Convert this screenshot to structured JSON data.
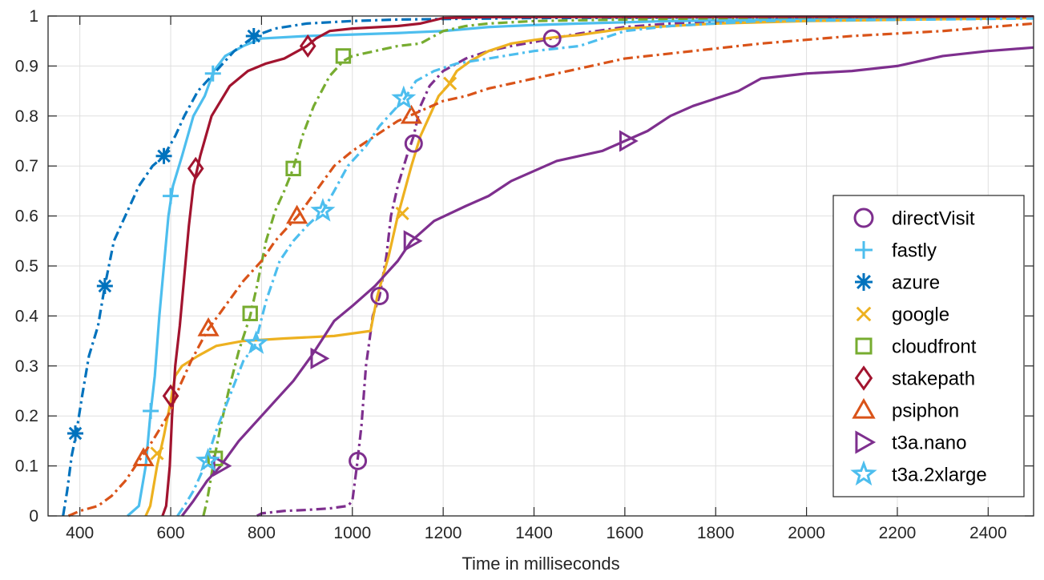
{
  "chart_data": {
    "type": "line",
    "title": "",
    "xlabel": "Time in milliseconds",
    "ylabel": "",
    "xlim": [
      330,
      2500
    ],
    "ylim": [
      0,
      1
    ],
    "xticks": [
      400,
      600,
      800,
      1000,
      1200,
      1400,
      1600,
      1800,
      2000,
      2200,
      2400
    ],
    "yticks": [
      0,
      0.1,
      0.2,
      0.3,
      0.4,
      0.5,
      0.6,
      0.7,
      0.8,
      0.9,
      1
    ],
    "grid": true,
    "legend_position": "right",
    "series": [
      {
        "name": "directVisit",
        "color": "#7E2F8E",
        "dash": "dashdot",
        "marker": "circle",
        "points": [
          [
            790,
            0
          ],
          [
            800,
            0.005
          ],
          [
            850,
            0.01
          ],
          [
            900,
            0.012
          ],
          [
            950,
            0.015
          ],
          [
            990,
            0.02
          ],
          [
            1000,
            0.03
          ],
          [
            1010,
            0.1
          ],
          [
            1020,
            0.18
          ],
          [
            1030,
            0.3
          ],
          [
            1045,
            0.4
          ],
          [
            1060,
            0.44
          ],
          [
            1075,
            0.52
          ],
          [
            1085,
            0.6
          ],
          [
            1100,
            0.66
          ],
          [
            1120,
            0.72
          ],
          [
            1135,
            0.76
          ],
          [
            1150,
            0.82
          ],
          [
            1170,
            0.86
          ],
          [
            1200,
            0.89
          ],
          [
            1250,
            0.915
          ],
          [
            1300,
            0.93
          ],
          [
            1350,
            0.94
          ],
          [
            1400,
            0.948
          ],
          [
            1440,
            0.955
          ],
          [
            1500,
            0.965
          ],
          [
            1600,
            0.978
          ],
          [
            1700,
            0.985
          ],
          [
            1900,
            0.992
          ],
          [
            2100,
            0.996
          ],
          [
            2300,
            0.998
          ],
          [
            2500,
            0.999
          ]
        ],
        "markers": [
          [
            1012,
            0.11
          ],
          [
            1060,
            0.44
          ],
          [
            1135,
            0.745
          ],
          [
            1440,
            0.955
          ]
        ]
      },
      {
        "name": "fastly",
        "color": "#4DBEEE",
        "dash": "solid",
        "marker": "plus",
        "points": [
          [
            505,
            0
          ],
          [
            530,
            0.02
          ],
          [
            545,
            0.1
          ],
          [
            555,
            0.2
          ],
          [
            565,
            0.28
          ],
          [
            575,
            0.4
          ],
          [
            585,
            0.5
          ],
          [
            595,
            0.6
          ],
          [
            605,
            0.66
          ],
          [
            625,
            0.72
          ],
          [
            650,
            0.8
          ],
          [
            675,
            0.84
          ],
          [
            695,
            0.89
          ],
          [
            720,
            0.92
          ],
          [
            760,
            0.94
          ],
          [
            800,
            0.955
          ],
          [
            900,
            0.96
          ],
          [
            1000,
            0.963
          ],
          [
            1100,
            0.966
          ],
          [
            1200,
            0.97
          ],
          [
            1300,
            0.978
          ],
          [
            1400,
            0.982
          ],
          [
            1500,
            0.985
          ],
          [
            1700,
            0.99
          ],
          [
            2000,
            0.993
          ],
          [
            2500,
            0.996
          ]
        ],
        "markers": [
          [
            556,
            0.21
          ],
          [
            600,
            0.64
          ],
          [
            693,
            0.885
          ]
        ]
      },
      {
        "name": "azure",
        "color": "#0072BD",
        "dash": "dashdot",
        "marker": "asterisk",
        "points": [
          [
            363,
            0
          ],
          [
            372,
            0.05
          ],
          [
            382,
            0.12
          ],
          [
            392,
            0.165
          ],
          [
            405,
            0.24
          ],
          [
            420,
            0.32
          ],
          [
            440,
            0.38
          ],
          [
            455,
            0.46
          ],
          [
            475,
            0.55
          ],
          [
            500,
            0.6
          ],
          [
            530,
            0.66
          ],
          [
            560,
            0.7
          ],
          [
            585,
            0.72
          ],
          [
            610,
            0.76
          ],
          [
            630,
            0.8
          ],
          [
            660,
            0.85
          ],
          [
            700,
            0.89
          ],
          [
            740,
            0.93
          ],
          [
            770,
            0.95
          ],
          [
            785,
            0.96
          ],
          [
            830,
            0.975
          ],
          [
            900,
            0.985
          ],
          [
            1000,
            0.99
          ],
          [
            1100,
            0.993
          ],
          [
            1400,
            0.996
          ],
          [
            2500,
            0.999
          ]
        ],
        "markers": [
          [
            390,
            0.165
          ],
          [
            455,
            0.46
          ],
          [
            585,
            0.72
          ],
          [
            783,
            0.96
          ]
        ]
      },
      {
        "name": "google",
        "color": "#EDB120",
        "dash": "solid",
        "marker": "x",
        "points": [
          [
            545,
            0
          ],
          [
            555,
            0.02
          ],
          [
            570,
            0.1
          ],
          [
            585,
            0.16
          ],
          [
            598,
            0.22
          ],
          [
            610,
            0.28
          ],
          [
            625,
            0.3
          ],
          [
            660,
            0.32
          ],
          [
            700,
            0.34
          ],
          [
            760,
            0.35
          ],
          [
            850,
            0.355
          ],
          [
            960,
            0.36
          ],
          [
            1040,
            0.37
          ],
          [
            1055,
            0.44
          ],
          [
            1080,
            0.52
          ],
          [
            1100,
            0.6
          ],
          [
            1115,
            0.65
          ],
          [
            1130,
            0.7
          ],
          [
            1150,
            0.76
          ],
          [
            1170,
            0.8
          ],
          [
            1190,
            0.84
          ],
          [
            1210,
            0.86
          ],
          [
            1230,
            0.89
          ],
          [
            1260,
            0.91
          ],
          [
            1300,
            0.93
          ],
          [
            1350,
            0.945
          ],
          [
            1400,
            0.952
          ],
          [
            1450,
            0.958
          ],
          [
            1500,
            0.962
          ],
          [
            1600,
            0.975
          ],
          [
            1800,
            0.985
          ],
          [
            2000,
            0.99
          ],
          [
            2500,
            0.996
          ]
        ],
        "markers": [
          [
            570,
            0.125
          ],
          [
            1110,
            0.605
          ],
          [
            1215,
            0.865
          ]
        ]
      },
      {
        "name": "cloudfront",
        "color": "#77AC30",
        "dash": "dashdot",
        "marker": "square",
        "points": [
          [
            672,
            0
          ],
          [
            680,
            0.03
          ],
          [
            695,
            0.11
          ],
          [
            710,
            0.18
          ],
          [
            730,
            0.26
          ],
          [
            750,
            0.33
          ],
          [
            775,
            0.4
          ],
          [
            790,
            0.46
          ],
          [
            810,
            0.55
          ],
          [
            830,
            0.61
          ],
          [
            850,
            0.65
          ],
          [
            870,
            0.695
          ],
          [
            890,
            0.76
          ],
          [
            915,
            0.82
          ],
          [
            950,
            0.88
          ],
          [
            980,
            0.91
          ],
          [
            1000,
            0.92
          ],
          [
            1100,
            0.94
          ],
          [
            1150,
            0.945
          ],
          [
            1200,
            0.97
          ],
          [
            1250,
            0.98
          ],
          [
            1300,
            0.985
          ],
          [
            1400,
            0.99
          ],
          [
            1600,
            0.993
          ],
          [
            1900,
            0.997
          ],
          [
            2500,
            0.999
          ]
        ],
        "markers": [
          [
            698,
            0.115
          ],
          [
            775,
            0.405
          ],
          [
            870,
            0.695
          ],
          [
            980,
            0.92
          ]
        ]
      },
      {
        "name": "stakepath",
        "color": "#A2142F",
        "dash": "solid",
        "marker": "diamond",
        "points": [
          [
            582,
            0
          ],
          [
            590,
            0.02
          ],
          [
            598,
            0.1
          ],
          [
            603,
            0.2
          ],
          [
            610,
            0.3
          ],
          [
            620,
            0.38
          ],
          [
            630,
            0.48
          ],
          [
            640,
            0.58
          ],
          [
            650,
            0.66
          ],
          [
            665,
            0.72
          ],
          [
            690,
            0.8
          ],
          [
            730,
            0.86
          ],
          [
            770,
            0.89
          ],
          [
            810,
            0.905
          ],
          [
            850,
            0.915
          ],
          [
            900,
            0.94
          ],
          [
            920,
            0.955
          ],
          [
            950,
            0.97
          ],
          [
            1000,
            0.975
          ],
          [
            1100,
            0.98
          ],
          [
            1150,
            0.985
          ],
          [
            1200,
            0.996
          ],
          [
            1300,
            0.998
          ],
          [
            2500,
            0.999
          ]
        ],
        "markers": [
          [
            600,
            0.24
          ],
          [
            655,
            0.695
          ],
          [
            902,
            0.94
          ]
        ]
      },
      {
        "name": "psiphon",
        "color": "#D95319",
        "dash": "dashdot",
        "marker": "triangle",
        "points": [
          [
            375,
            0
          ],
          [
            400,
            0.01
          ],
          [
            440,
            0.02
          ],
          [
            470,
            0.04
          ],
          [
            500,
            0.07
          ],
          [
            530,
            0.11
          ],
          [
            560,
            0.15
          ],
          [
            600,
            0.21
          ],
          [
            620,
            0.26
          ],
          [
            645,
            0.31
          ],
          [
            680,
            0.37
          ],
          [
            720,
            0.42
          ],
          [
            760,
            0.47
          ],
          [
            800,
            0.51
          ],
          [
            830,
            0.55
          ],
          [
            860,
            0.58
          ],
          [
            880,
            0.6
          ],
          [
            920,
            0.65
          ],
          [
            960,
            0.7
          ],
          [
            1000,
            0.73
          ],
          [
            1050,
            0.76
          ],
          [
            1100,
            0.79
          ],
          [
            1150,
            0.81
          ],
          [
            1200,
            0.83
          ],
          [
            1250,
            0.84
          ],
          [
            1300,
            0.855
          ],
          [
            1400,
            0.875
          ],
          [
            1500,
            0.895
          ],
          [
            1600,
            0.915
          ],
          [
            1700,
            0.925
          ],
          [
            1900,
            0.945
          ],
          [
            2100,
            0.96
          ],
          [
            2300,
            0.97
          ],
          [
            2500,
            0.985
          ]
        ],
        "markers": [
          [
            540,
            0.115
          ],
          [
            683,
            0.375
          ],
          [
            878,
            0.6
          ],
          [
            1130,
            0.8
          ]
        ]
      },
      {
        "name": "t3a.nano",
        "color": "#7E2F8E",
        "dash": "solid",
        "marker": "triangle-right",
        "points": [
          [
            625,
            0
          ],
          [
            650,
            0.03
          ],
          [
            680,
            0.07
          ],
          [
            710,
            0.1
          ],
          [
            750,
            0.15
          ],
          [
            790,
            0.19
          ],
          [
            830,
            0.23
          ],
          [
            870,
            0.27
          ],
          [
            910,
            0.32
          ],
          [
            960,
            0.39
          ],
          [
            1000,
            0.42
          ],
          [
            1050,
            0.46
          ],
          [
            1100,
            0.51
          ],
          [
            1130,
            0.55
          ],
          [
            1180,
            0.59
          ],
          [
            1250,
            0.62
          ],
          [
            1300,
            0.64
          ],
          [
            1350,
            0.67
          ],
          [
            1400,
            0.69
          ],
          [
            1450,
            0.71
          ],
          [
            1500,
            0.72
          ],
          [
            1550,
            0.73
          ],
          [
            1600,
            0.75
          ],
          [
            1650,
            0.77
          ],
          [
            1700,
            0.8
          ],
          [
            1750,
            0.82
          ],
          [
            1850,
            0.85
          ],
          [
            1900,
            0.875
          ],
          [
            2000,
            0.885
          ],
          [
            2100,
            0.89
          ],
          [
            2200,
            0.9
          ],
          [
            2300,
            0.92
          ],
          [
            2400,
            0.93
          ],
          [
            2500,
            0.937
          ]
        ],
        "markers": [
          [
            710,
            0.1
          ],
          [
            925,
            0.315
          ],
          [
            1130,
            0.55
          ],
          [
            1605,
            0.75
          ]
        ]
      },
      {
        "name": "t3a.2xlarge",
        "color": "#4DBEEE",
        "dash": "dashdot",
        "marker": "pentagram",
        "points": [
          [
            615,
            0
          ],
          [
            630,
            0.02
          ],
          [
            650,
            0.05
          ],
          [
            675,
            0.1
          ],
          [
            700,
            0.17
          ],
          [
            730,
            0.24
          ],
          [
            760,
            0.31
          ],
          [
            785,
            0.34
          ],
          [
            810,
            0.43
          ],
          [
            840,
            0.51
          ],
          [
            870,
            0.55
          ],
          [
            900,
            0.58
          ],
          [
            935,
            0.61
          ],
          [
            960,
            0.65
          ],
          [
            990,
            0.7
          ],
          [
            1030,
            0.74
          ],
          [
            1060,
            0.78
          ],
          [
            1100,
            0.82
          ],
          [
            1115,
            0.835
          ],
          [
            1140,
            0.87
          ],
          [
            1180,
            0.89
          ],
          [
            1230,
            0.905
          ],
          [
            1300,
            0.915
          ],
          [
            1400,
            0.93
          ],
          [
            1500,
            0.94
          ],
          [
            1550,
            0.955
          ],
          [
            1600,
            0.97
          ],
          [
            1700,
            0.98
          ],
          [
            1900,
            0.99
          ],
          [
            2500,
            0.995
          ]
        ],
        "markers": [
          [
            682,
            0.11
          ],
          [
            788,
            0.345
          ],
          [
            935,
            0.61
          ],
          [
            1113,
            0.835
          ]
        ]
      }
    ]
  }
}
